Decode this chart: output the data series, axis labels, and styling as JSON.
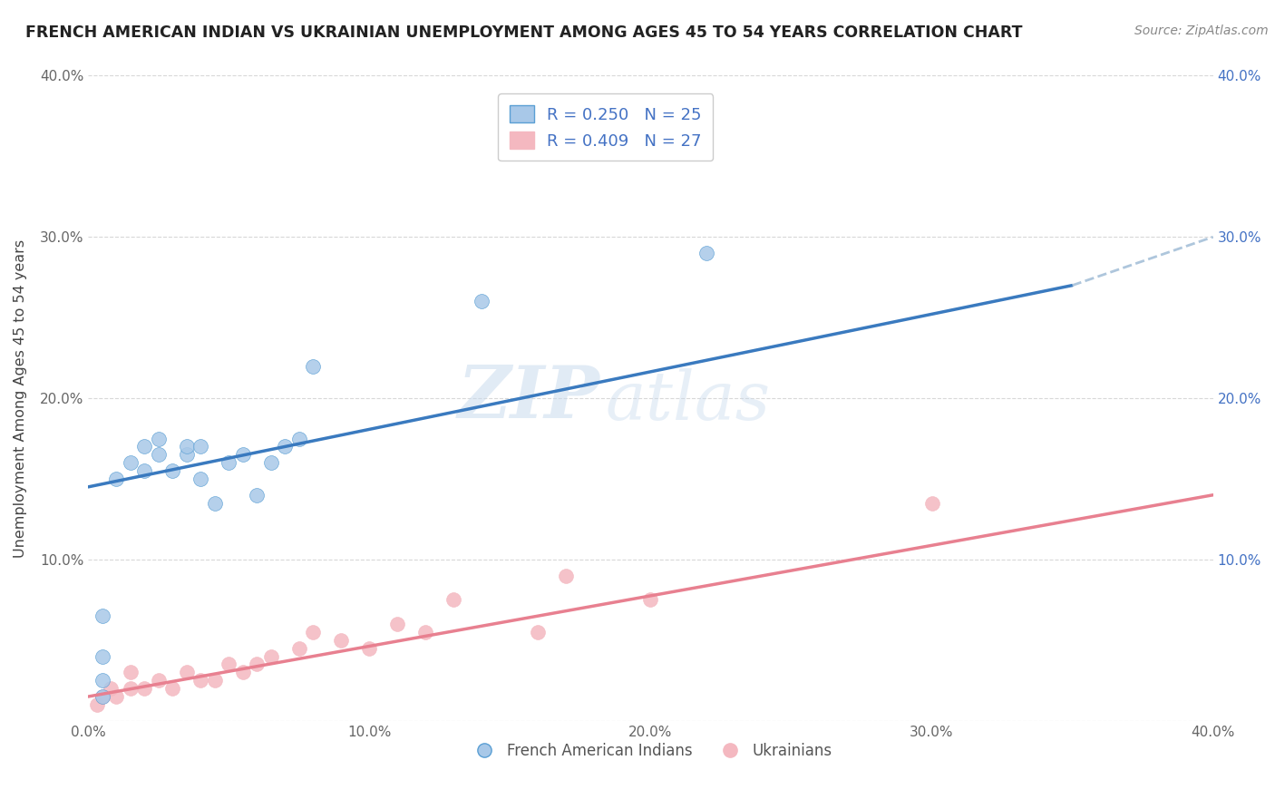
{
  "title": "FRENCH AMERICAN INDIAN VS UKRAINIAN UNEMPLOYMENT AMONG AGES 45 TO 54 YEARS CORRELATION CHART",
  "source": "Source: ZipAtlas.com",
  "ylabel": "Unemployment Among Ages 45 to 54 years",
  "xlim": [
    0.0,
    40.0
  ],
  "ylim": [
    0.0,
    40.0
  ],
  "xticks": [
    0.0,
    10.0,
    20.0,
    30.0,
    40.0
  ],
  "yticks": [
    0.0,
    10.0,
    20.0,
    30.0,
    40.0
  ],
  "xtick_labels": [
    "0.0%",
    "10.0%",
    "20.0%",
    "30.0%",
    "40.0%"
  ],
  "ytick_labels": [
    "",
    "10.0%",
    "20.0%",
    "30.0%",
    "40.0%"
  ],
  "watermark_zip": "ZIP",
  "watermark_atlas": "atlas",
  "blue_color": "#a8c8e8",
  "blue_edge": "#5a9fd4",
  "pink_color": "#f4b8c0",
  "pink_edge": "#f4b8c0",
  "blue_line_color": "#3a7abf",
  "pink_line_color": "#e88090",
  "dashed_line_color": "#aec6dc",
  "legend_blue_label": "R = 0.250   N = 25",
  "legend_pink_label": "R = 0.409   N = 27",
  "legend_bottom_blue": "French American Indians",
  "legend_bottom_pink": "Ukrainians",
  "right_axis_color": "#4472c4",
  "french_x": [
    0.5,
    0.5,
    0.5,
    0.5,
    1.0,
    1.5,
    2.0,
    2.0,
    2.5,
    2.5,
    3.0,
    3.5,
    3.5,
    4.0,
    4.0,
    4.5,
    5.0,
    5.5,
    6.0,
    6.5,
    7.0,
    7.5,
    8.0,
    14.0,
    22.0
  ],
  "french_y": [
    1.5,
    2.5,
    4.0,
    6.5,
    15.0,
    16.0,
    15.5,
    17.0,
    16.5,
    17.5,
    15.5,
    16.5,
    17.0,
    15.0,
    17.0,
    13.5,
    16.0,
    16.5,
    14.0,
    16.0,
    17.0,
    17.5,
    22.0,
    26.0,
    29.0
  ],
  "ukrainian_x": [
    0.3,
    0.5,
    0.8,
    1.0,
    1.5,
    1.5,
    2.0,
    2.5,
    3.0,
    3.5,
    4.0,
    4.5,
    5.0,
    5.5,
    6.0,
    6.5,
    7.5,
    8.0,
    9.0,
    10.0,
    11.0,
    12.0,
    13.0,
    16.0,
    17.0,
    20.0,
    30.0
  ],
  "ukrainian_y": [
    1.0,
    1.5,
    2.0,
    1.5,
    2.0,
    3.0,
    2.0,
    2.5,
    2.0,
    3.0,
    2.5,
    2.5,
    3.5,
    3.0,
    3.5,
    4.0,
    4.5,
    5.5,
    5.0,
    4.5,
    6.0,
    5.5,
    7.5,
    5.5,
    9.0,
    7.5,
    13.5
  ],
  "blue_line_x0": 0.0,
  "blue_line_y0": 14.5,
  "blue_line_x1": 35.0,
  "blue_line_y1": 27.0,
  "dashed_x0": 35.0,
  "dashed_y0": 27.0,
  "dashed_x1": 40.0,
  "dashed_y1": 30.0,
  "pink_line_x0": 0.0,
  "pink_line_y0": 1.5,
  "pink_line_x1": 40.0,
  "pink_line_y1": 14.0
}
